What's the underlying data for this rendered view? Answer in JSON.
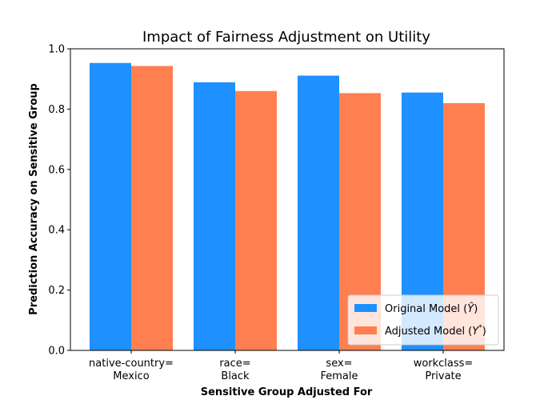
{
  "chart_data": {
    "type": "bar",
    "title": "Impact of Fairness Adjustment on Utility",
    "xlabel": "Sensitive Group Adjusted For",
    "ylabel": "Prediction Accuracy on Sensitive Group",
    "ylim": [
      0,
      1.0
    ],
    "yticks": [
      "0.0",
      "0.2",
      "0.4",
      "0.6",
      "0.8",
      "1.0"
    ],
    "categories": [
      [
        "native-country=",
        "Mexico"
      ],
      [
        "race=",
        "Black"
      ],
      [
        "sex=",
        "Female"
      ],
      [
        "workclass=",
        "Private"
      ]
    ],
    "series": [
      {
        "name": "Original Model (Ŷ)",
        "color": "#1e90ff",
        "values": [
          0.953,
          0.889,
          0.911,
          0.855
        ]
      },
      {
        "name": "Adjusted Model (Y*)",
        "color": "#ff7f50",
        "values": [
          0.943,
          0.86,
          0.853,
          0.82
        ]
      }
    ],
    "legend": {
      "placement": "lower-right",
      "items": [
        {
          "base": "Original Model (",
          "symbol": "Ŷ",
          "sup": "",
          "close": ")"
        },
        {
          "base": "Adjusted Model (",
          "symbol": "Y",
          "sup": "*",
          "close": ")"
        }
      ]
    },
    "grid": false
  }
}
